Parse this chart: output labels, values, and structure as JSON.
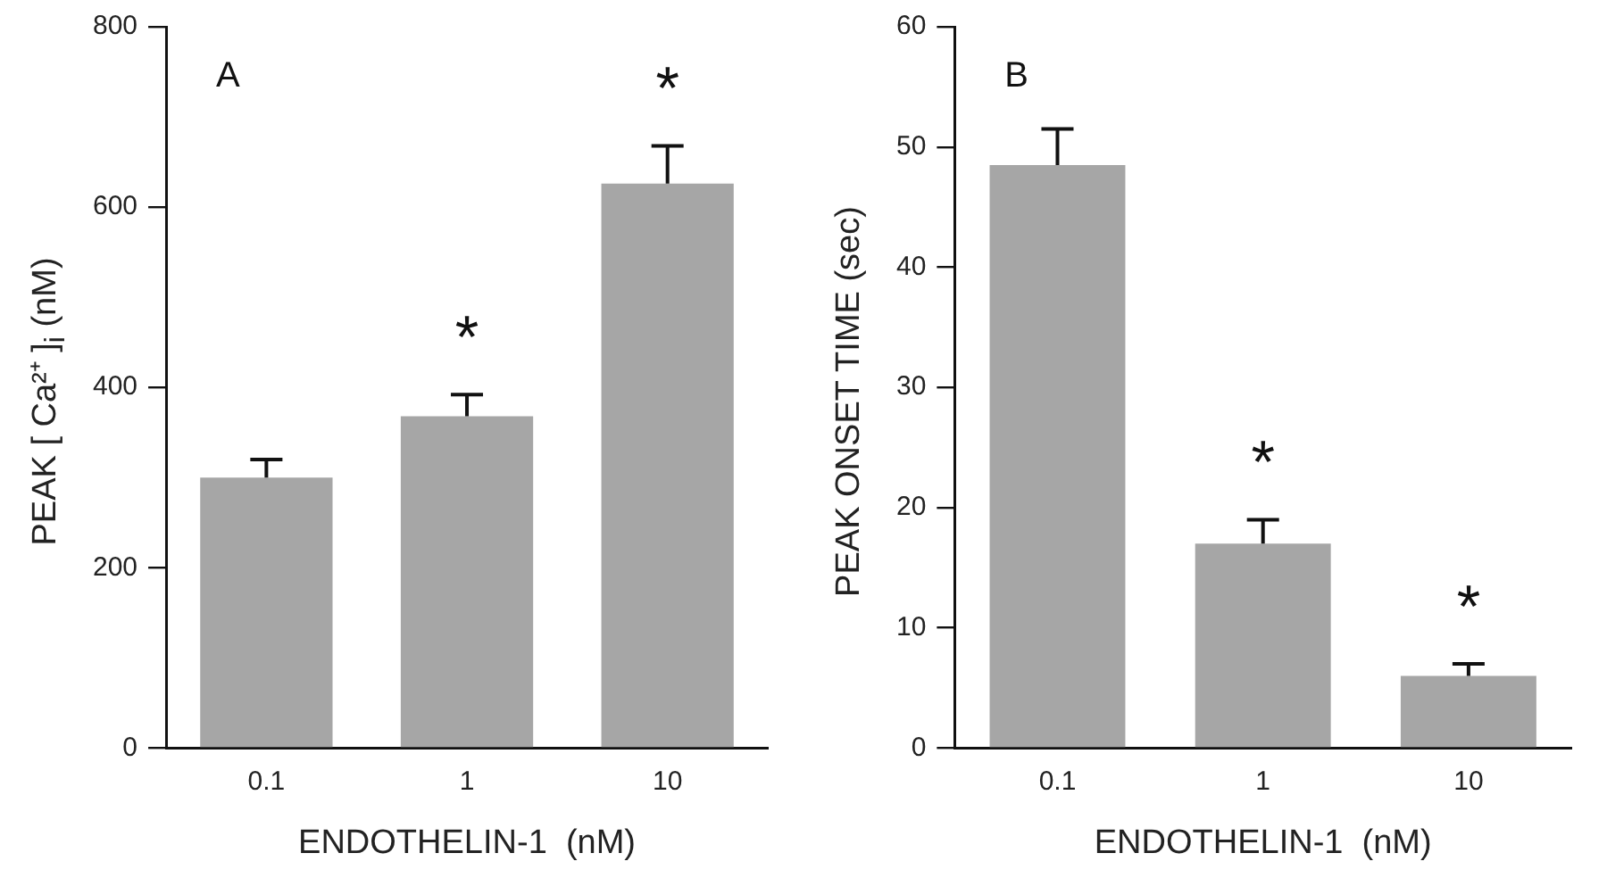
{
  "chart_data": [
    {
      "type": "bar",
      "categories": [
        "0.1",
        "1",
        "10"
      ],
      "values": [
        300,
        368,
        626
      ],
      "color": "#a6a6a6",
      "errors": [
        [
          300,
          320
        ],
        [
          368,
          392
        ],
        [
          626,
          668
        ]
      ],
      "xlabel": "ENDOTHELIN-1  (nM)",
      "ylabel": "PEAK [ Ca²⁺ ]$_{i}$  (nM)",
      "ylim": [
        0,
        800
      ],
      "yticks": [
        0,
        200,
        400,
        600,
        800
      ],
      "grid": false,
      "legend": false,
      "annotations": [
        "A",
        {
          "text": "*",
          "x": "1",
          "y": 392
        },
        {
          "text": "*",
          "x": "10",
          "y": 668
        }
      ]
    },
    {
      "type": "bar",
      "categories": [
        "0.1",
        "1",
        "10"
      ],
      "values": [
        48.5,
        17,
        6
      ],
      "color": "#a6a6a6",
      "errors": [
        [
          48.5,
          51.5
        ],
        [
          17,
          19
        ],
        [
          6,
          7
        ]
      ],
      "xlabel": "ENDOTHELIN-1  (nM)",
      "ylabel": "PEAK  ONSET  TIME  (sec)",
      "ylim": [
        0,
        60
      ],
      "yticks": [
        0,
        10,
        20,
        30,
        40,
        50,
        60
      ],
      "grid": false,
      "legend": false,
      "annotations": [
        "B",
        {
          "text": "*",
          "x": "1",
          "y": 19
        },
        {
          "text": "*",
          "x": "10",
          "y": 7
        }
      ]
    }
  ]
}
